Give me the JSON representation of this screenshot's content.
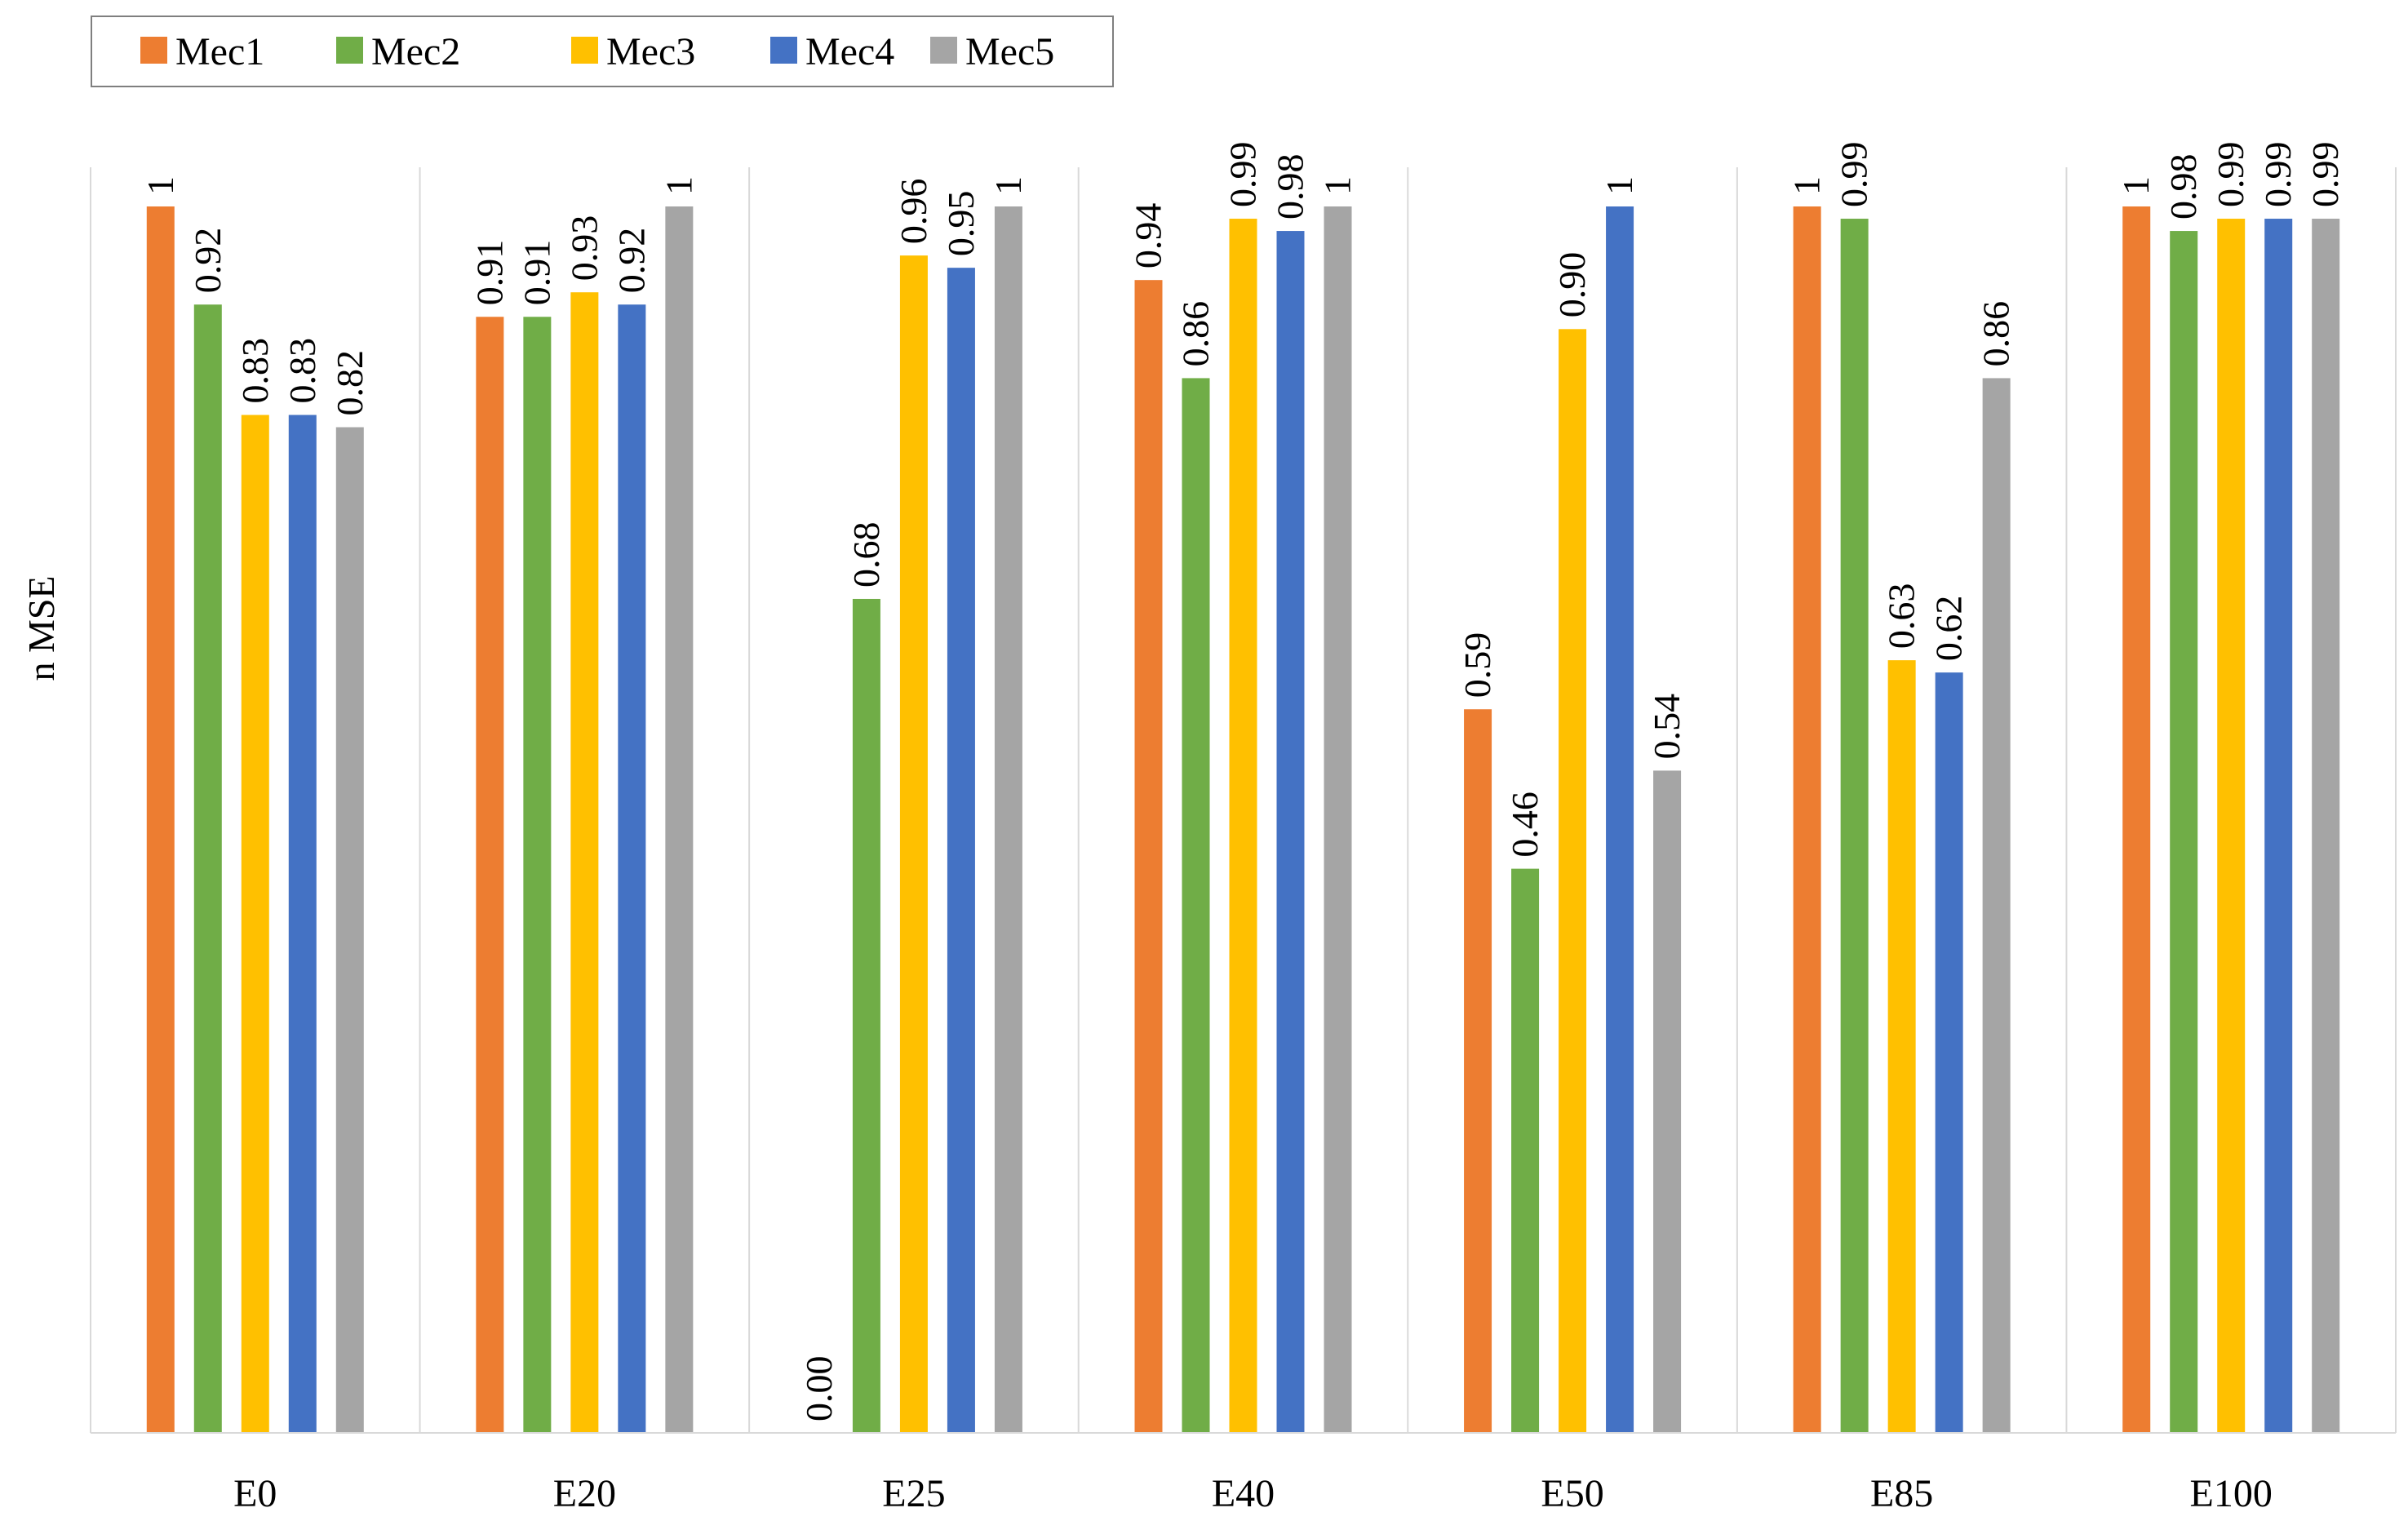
{
  "chart_data": {
    "type": "bar",
    "title": "",
    "xlabel": "",
    "ylabel": "n MSE",
    "ylim": [
      0,
      1
    ],
    "grid": "vertical-category-separators",
    "legend_position": "top-left",
    "categories": [
      "E0",
      "E20",
      "E25",
      "E40",
      "E50",
      "E85",
      "E100"
    ],
    "series": [
      {
        "name": "Mec1",
        "color": "#ED7D31",
        "values": [
          1,
          0.91,
          0,
          0.94,
          0.59,
          1,
          1
        ],
        "labels": [
          "1",
          "0.91",
          "0.00",
          "0.94",
          "0.59",
          "1",
          "1"
        ]
      },
      {
        "name": "Mec2",
        "color": "#70AD47",
        "values": [
          0.92,
          0.91,
          0.68,
          0.86,
          0.46,
          0.99,
          0.98
        ],
        "labels": [
          "0.92",
          "0.91",
          "0.68",
          "0.86",
          "0.46",
          "0.99",
          "0.98"
        ]
      },
      {
        "name": "Mec3",
        "color": "#FFC000",
        "values": [
          0.83,
          0.93,
          0.96,
          0.99,
          0.9,
          0.63,
          0.99
        ],
        "labels": [
          "0.83",
          "0.93",
          "0.96",
          "0.99",
          "0.90",
          "0.63",
          "0.99"
        ]
      },
      {
        "name": "Mec4",
        "color": "#4472C4",
        "values": [
          0.83,
          0.92,
          0.95,
          0.98,
          1,
          0.62,
          0.99
        ],
        "labels": [
          "0.83",
          "0.92",
          "0.95",
          "0.98",
          "1",
          "0.62",
          "0.99"
        ]
      },
      {
        "name": "Mec5",
        "color": "#A5A5A5",
        "values": [
          0.82,
          1,
          1,
          1,
          0.54,
          0.86,
          0.99
        ],
        "labels": [
          "0.82",
          "1",
          "1",
          "1",
          "0.54",
          "0.86",
          "0.99"
        ]
      }
    ]
  }
}
